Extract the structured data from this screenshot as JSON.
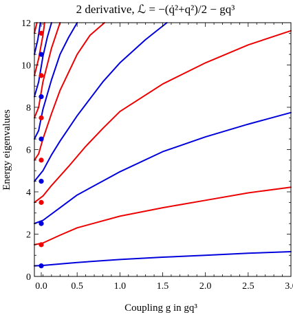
{
  "chart_data": {
    "type": "line",
    "title": "2 derivative, ℒ = −(q̇²+q²)/2 − gq³",
    "xlabel": "Coupling g in gq³",
    "ylabel": "Energy eigenvalues",
    "xlim": [
      0,
      3.0
    ],
    "ylim": [
      0,
      12
    ],
    "x_ticks": [
      "0.0",
      "0.5",
      "1.0",
      "1.5",
      "2.0",
      "2.5",
      "3.0"
    ],
    "y_ticks": [
      "0",
      "2",
      "4",
      "6",
      "8",
      "10",
      "12"
    ],
    "grid": false,
    "colors": {
      "blue": "#0000dd",
      "red": "#ee0000"
    },
    "series": [
      {
        "color": "#0000dd",
        "points": [
          [
            0,
            0.5
          ],
          [
            0.1,
            0.52
          ],
          [
            0.5,
            0.66
          ],
          [
            1.0,
            0.8
          ],
          [
            1.5,
            0.91
          ],
          [
            2.0,
            1.0
          ],
          [
            2.5,
            1.1
          ],
          [
            3.0,
            1.17
          ]
        ]
      },
      {
        "color": "#ee0000",
        "points": [
          [
            0,
            1.5
          ],
          [
            0.1,
            1.58
          ],
          [
            0.3,
            1.95
          ],
          [
            0.5,
            2.3
          ],
          [
            1.0,
            2.85
          ],
          [
            1.5,
            3.25
          ],
          [
            2.0,
            3.6
          ],
          [
            2.5,
            3.95
          ],
          [
            3.0,
            4.22
          ]
        ]
      },
      {
        "color": "#0000dd",
        "points": [
          [
            0,
            2.5
          ],
          [
            0.1,
            2.65
          ],
          [
            0.3,
            3.25
          ],
          [
            0.5,
            3.85
          ],
          [
            1.0,
            4.95
          ],
          [
            1.5,
            5.9
          ],
          [
            2.0,
            6.6
          ],
          [
            2.5,
            7.2
          ],
          [
            3.0,
            7.75
          ]
        ]
      },
      {
        "color": "#ee0000",
        "points": [
          [
            0,
            3.5
          ],
          [
            0.1,
            3.8
          ],
          [
            0.2,
            4.3
          ],
          [
            0.4,
            5.2
          ],
          [
            0.6,
            6.15
          ],
          [
            0.8,
            7.0
          ],
          [
            1.0,
            7.8
          ],
          [
            1.5,
            9.1
          ],
          [
            2.0,
            10.1
          ],
          [
            2.5,
            10.95
          ],
          [
            3.0,
            11.62
          ]
        ]
      },
      {
        "color": "#0000dd",
        "points": [
          [
            0,
            4.5
          ],
          [
            0.1,
            5.0
          ],
          [
            0.2,
            5.75
          ],
          [
            0.3,
            6.4
          ],
          [
            0.5,
            7.6
          ],
          [
            0.8,
            9.2
          ],
          [
            1.0,
            10.1
          ],
          [
            1.3,
            11.2
          ],
          [
            1.55,
            12.0
          ]
        ]
      },
      {
        "color": "#ee0000",
        "points": [
          [
            0,
            5.5
          ],
          [
            0.05,
            5.8
          ],
          [
            0.1,
            6.5
          ],
          [
            0.2,
            7.7
          ],
          [
            0.3,
            8.8
          ],
          [
            0.5,
            10.5
          ],
          [
            0.65,
            11.4
          ],
          [
            0.82,
            12.0
          ]
        ]
      },
      {
        "color": "#0000dd",
        "points": [
          [
            0,
            6.5
          ],
          [
            0.05,
            6.9
          ],
          [
            0.1,
            7.9
          ],
          [
            0.2,
            9.3
          ],
          [
            0.3,
            10.5
          ],
          [
            0.4,
            11.3
          ],
          [
            0.5,
            12.0
          ]
        ]
      },
      {
        "color": "#ee0000",
        "points": [
          [
            0,
            7.5
          ],
          [
            0.05,
            8.0
          ],
          [
            0.1,
            9.2
          ],
          [
            0.2,
            10.8
          ],
          [
            0.3,
            12.0
          ]
        ]
      },
      {
        "color": "#0000dd",
        "points": [
          [
            0,
            8.5
          ],
          [
            0.05,
            9.2
          ],
          [
            0.1,
            10.4
          ],
          [
            0.15,
            11.3
          ],
          [
            0.2,
            12.0
          ]
        ]
      },
      {
        "color": "#ee0000",
        "points": [
          [
            0,
            9.5
          ],
          [
            0.05,
            10.3
          ],
          [
            0.1,
            11.4
          ],
          [
            0.12,
            12.0
          ]
        ]
      },
      {
        "color": "#0000dd",
        "points": [
          [
            0,
            10.5
          ],
          [
            0.04,
            11.2
          ],
          [
            0.07,
            12.0
          ]
        ]
      },
      {
        "color": "#ee0000",
        "points": [
          [
            0,
            11.5
          ],
          [
            0.03,
            12.0
          ]
        ]
      }
    ],
    "start_points": [
      {
        "x": 0,
        "y": 0.5,
        "color": "#0000dd"
      },
      {
        "x": 0,
        "y": 1.5,
        "color": "#ee0000"
      },
      {
        "x": 0,
        "y": 2.5,
        "color": "#0000dd"
      },
      {
        "x": 0,
        "y": 3.5,
        "color": "#ee0000"
      },
      {
        "x": 0,
        "y": 4.5,
        "color": "#0000dd"
      },
      {
        "x": 0,
        "y": 5.5,
        "color": "#ee0000"
      },
      {
        "x": 0,
        "y": 6.5,
        "color": "#0000dd"
      },
      {
        "x": 0,
        "y": 7.5,
        "color": "#ee0000"
      },
      {
        "x": 0,
        "y": 8.5,
        "color": "#0000dd"
      },
      {
        "x": 0,
        "y": 9.5,
        "color": "#ee0000"
      },
      {
        "x": 0,
        "y": 10.5,
        "color": "#0000dd"
      },
      {
        "x": 0,
        "y": 11.5,
        "color": "#ee0000"
      }
    ]
  }
}
